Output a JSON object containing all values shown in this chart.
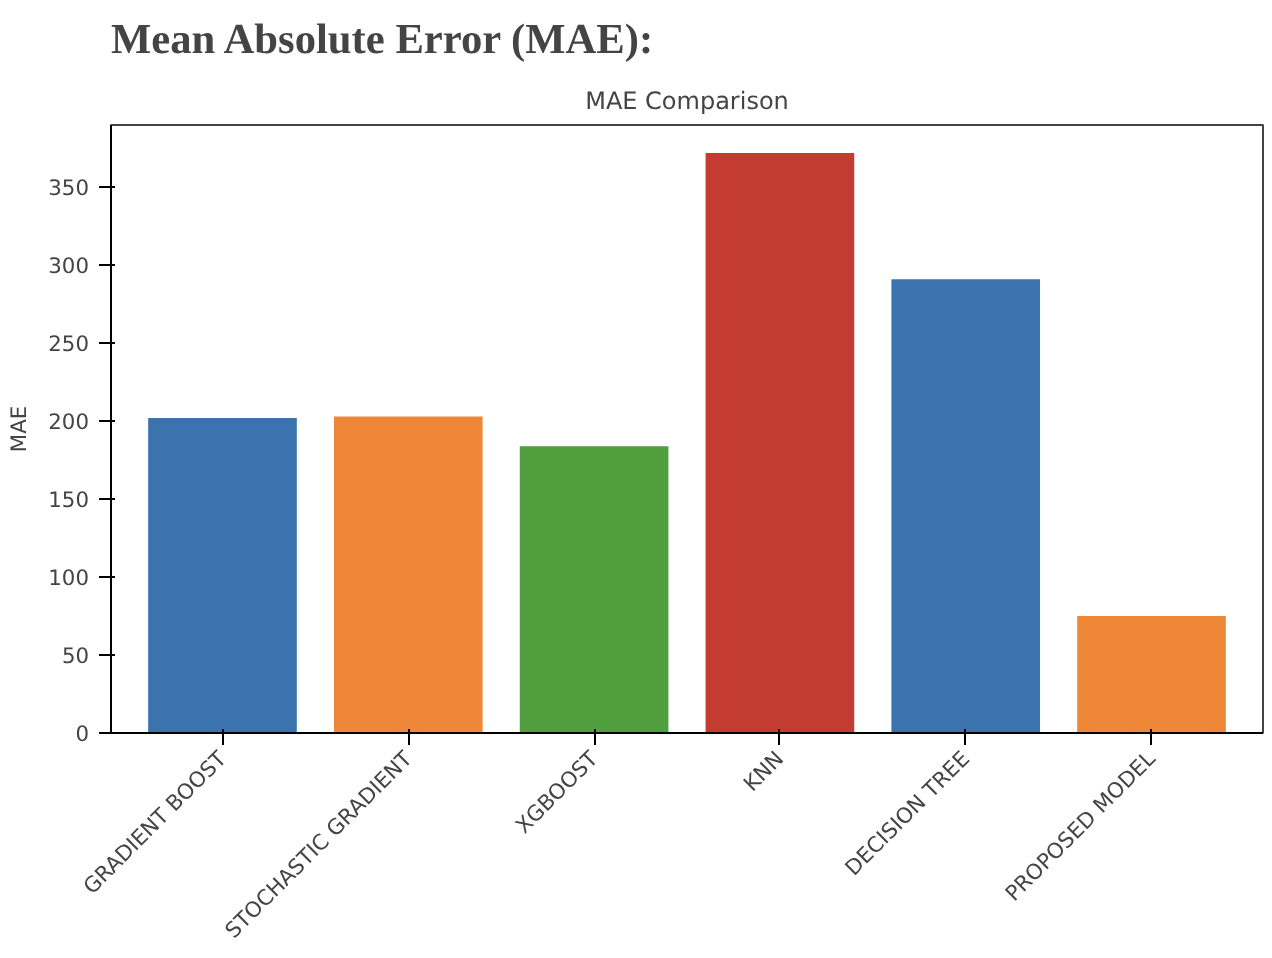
{
  "chart_data": {
    "type": "bar",
    "title": "Mean Absolute Error (MAE):",
    "subtitle": "MAE Comparison",
    "ylabel": "MAE",
    "categories": [
      "GRADIENT BOOST",
      "STOCHASTIC GRADIENT",
      "XGBOOST",
      "KNN",
      "DECISION TREE",
      "PROPOSED MODEL"
    ],
    "values": [
      202,
      203,
      184,
      372,
      291,
      75
    ],
    "colors": [
      "#3a73ad",
      "#ee8738",
      "#519e3e",
      "#c43b32",
      "#3a73ad",
      "#ee8738"
    ],
    "ylim": [
      0,
      390
    ],
    "yticks": [
      0,
      50,
      100,
      150,
      200,
      250,
      300,
      350
    ],
    "grid": false
  }
}
